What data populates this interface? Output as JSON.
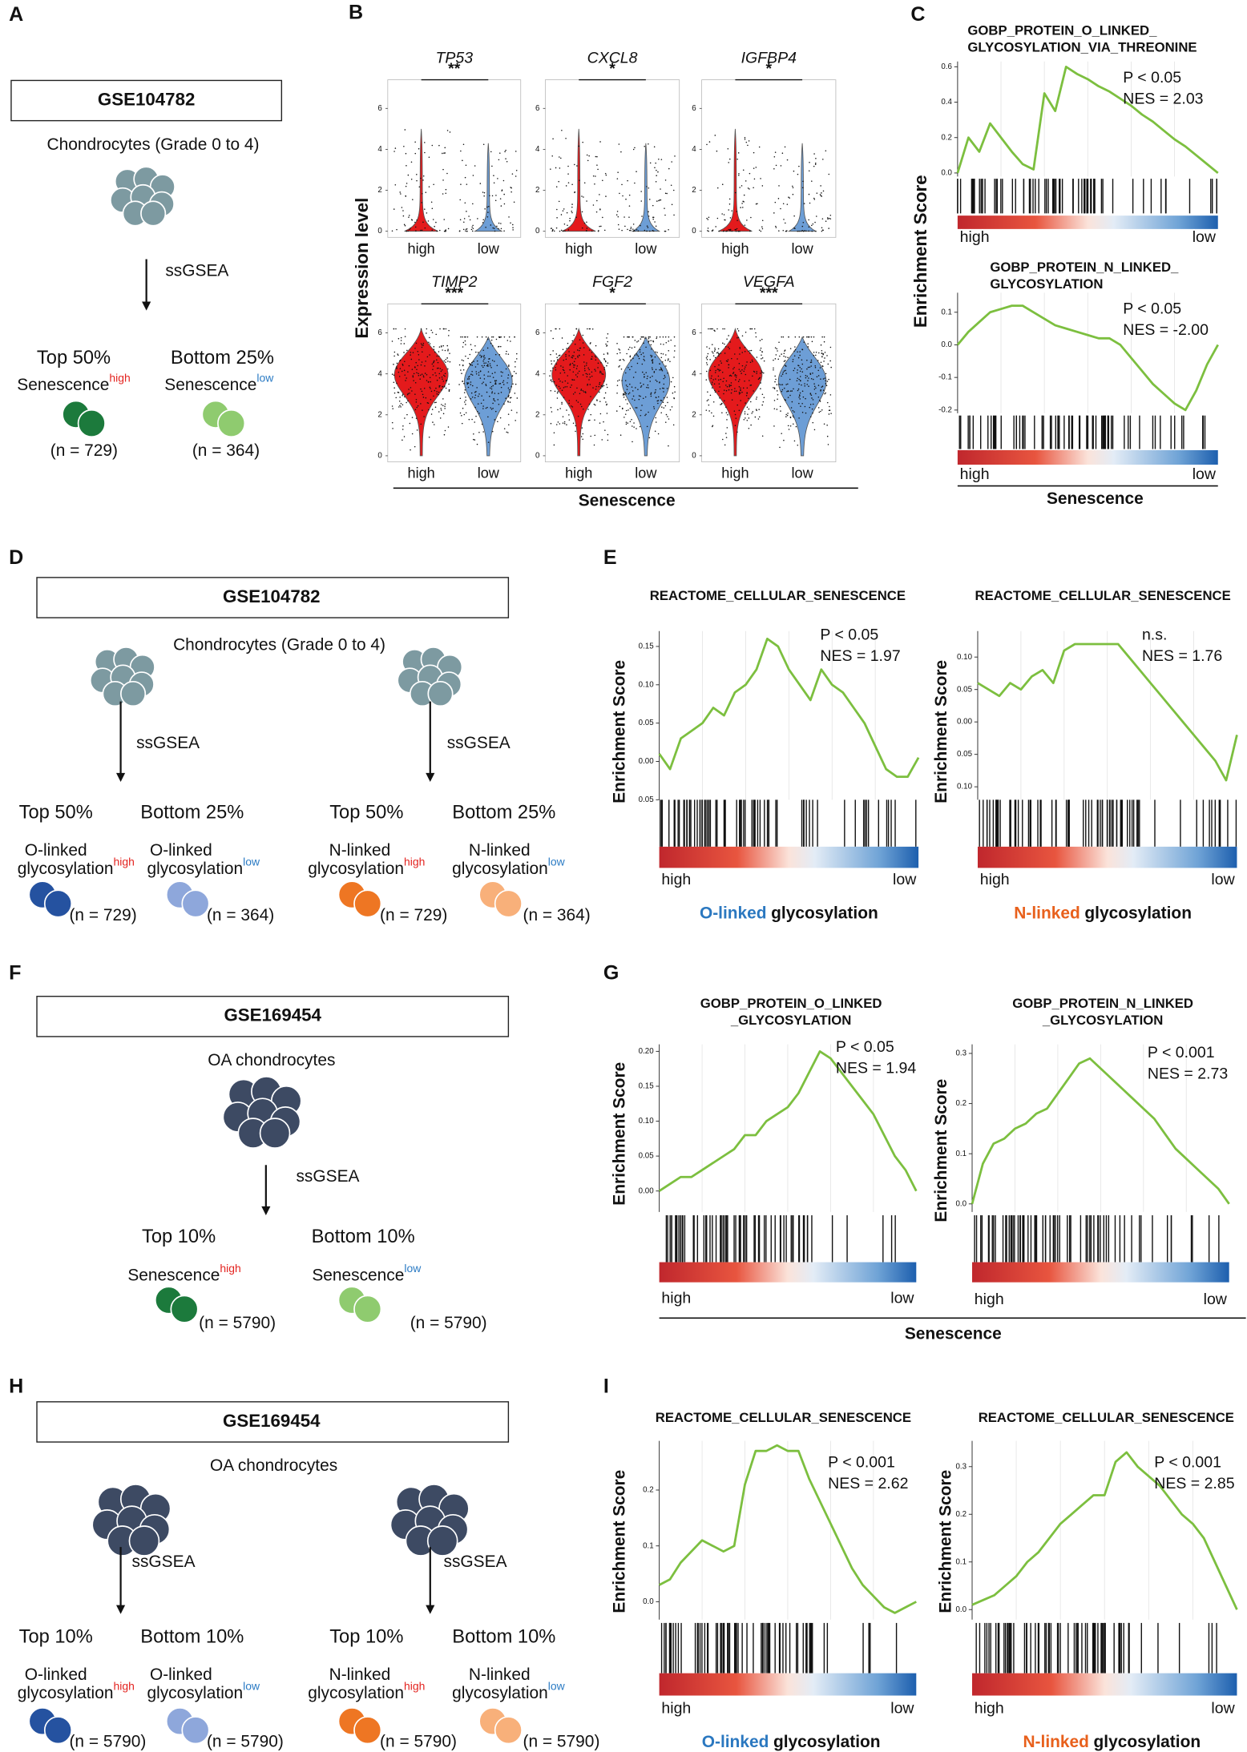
{
  "A": {
    "letter": "A",
    "dataset": "GSE104782",
    "cells": "Chondrocytes (Grade 0 to 4)",
    "method": "ssGSEA",
    "groups": [
      {
        "percent": "Top 50%",
        "name": "Senescence",
        "level": "high",
        "n": "(n = 729)",
        "color": "#1c7a3c"
      },
      {
        "percent": "Bottom 25%",
        "name": "Senescence",
        "level": "low",
        "n": "(n = 364)",
        "color": "#8fcb6f"
      }
    ]
  },
  "B": {
    "letter": "B",
    "y_label": "Expression level",
    "x_label": "Senescence",
    "categories": [
      "high",
      "low"
    ],
    "colors": [
      "#e41a1c",
      "#6d9ed6"
    ],
    "ylim": [
      -0.3,
      7.4
    ],
    "yticks": [
      0,
      2,
      4,
      6
    ],
    "genes": [
      {
        "name": "TP53",
        "significance": "**"
      },
      {
        "name": "CXCL8",
        "significance": "*"
      },
      {
        "name": "IGFBP4",
        "significance": "*"
      },
      {
        "name": "TIMP2",
        "significance": "***"
      },
      {
        "name": "FGF2",
        "significance": "*"
      },
      {
        "name": "VEGFA",
        "significance": "***"
      }
    ]
  },
  "C": {
    "letter": "C",
    "y_label": "Enrichment Score",
    "x_label": "Senescence",
    "plots": [
      {
        "title": [
          "GOBP_PROTEIN_O_LINKED_",
          "GLYCOSYLATION_VIA_THREONINE"
        ],
        "p": "P < 0.05",
        "nes": "NES = 2.03",
        "high_label": "high",
        "low_label": "low",
        "ylim": [
          -0.02,
          0.63
        ],
        "yticks": [
          {
            "value": 0,
            "label": "0.0"
          },
          0.2,
          0.4,
          0.6
        ],
        "values": [
          0,
          0.2,
          0.12,
          0.28,
          0.2,
          0.12,
          0.05,
          0.02,
          0.45,
          0.35,
          0.6,
          0.56,
          0.53,
          0.49,
          0.46,
          0.42,
          0.38,
          0.33,
          0.29,
          0.24,
          0.19,
          0.15,
          0.1,
          0.05,
          0
        ]
      },
      {
        "title": [
          "GOBP_PROTEIN_N_LINKED_",
          "GLYCOSYLATION"
        ],
        "p": "P < 0.05",
        "nes": "NES = -2.00",
        "high_label": "high",
        "low_label": "low",
        "ylim": [
          -0.21,
          0.16
        ],
        "yticks": [
          0.1,
          {
            "value": 0,
            "label": "0.0"
          },
          -0.1,
          -0.2
        ],
        "values": [
          0,
          0.04,
          0.07,
          0.1,
          0.11,
          0.12,
          0.12,
          0.1,
          0.08,
          0.06,
          0.05,
          0.04,
          0.03,
          0.02,
          0.02,
          0,
          -0.04,
          -0.08,
          -0.12,
          -0.15,
          -0.18,
          -0.2,
          -0.14,
          -0.06,
          0
        ]
      }
    ]
  },
  "D": {
    "letter": "D",
    "dataset": "GSE104782",
    "cells": "Chondrocytes (Grade 0 to 4)",
    "method": "ssGSEA",
    "groups": [
      {
        "percent": "Top 50%",
        "name": [
          "O-linked",
          "glycosylation"
        ],
        "level": "high",
        "n": "(n = 729)",
        "color": "#2552a0"
      },
      {
        "percent": "Bottom 25%",
        "name": [
          "O-linked",
          "glycosylation"
        ],
        "level": "low",
        "n": "(n = 364)",
        "color": "#8ea7db"
      },
      {
        "percent": "Top 50%",
        "name": [
          "N-linked",
          "glycosylation"
        ],
        "level": "high",
        "n": "(n = 729)",
        "color": "#ee7623"
      },
      {
        "percent": "Bottom 25%",
        "name": [
          "N-linked",
          "glycosylation"
        ],
        "level": "low",
        "n": "(n = 364)",
        "color": "#f8b07a"
      }
    ]
  },
  "E": {
    "letter": "E",
    "plots": [
      {
        "title": [
          "REACTOME_CELLULAR_SENESCENCE"
        ],
        "p": "P < 0.05",
        "nes": "NES = 1.97",
        "high_label": "high",
        "low_label": "low",
        "y_label": "Enrichment Score",
        "x_label": "O-linked",
        "x_label_rest": "glycosylation",
        "x_label_color": "#2b78c0",
        "ylim": [
          -0.05,
          0.17
        ],
        "yticks": [
          0.15,
          {
            "value": 0.1,
            "label": "0.10"
          },
          0.05,
          {
            "value": 0,
            "label": "0.00"
          },
          {
            "value": -0.05,
            "label": "0.05"
          }
        ],
        "values": [
          0.01,
          -0.01,
          0.03,
          0.04,
          0.05,
          0.07,
          0.06,
          0.09,
          0.1,
          0.12,
          0.16,
          0.15,
          0.12,
          0.1,
          0.08,
          0.12,
          0.1,
          0.09,
          0.07,
          0.05,
          0.02,
          -0.01,
          -0.02,
          -0.02,
          0.005
        ]
      },
      {
        "title": [
          "REACTOME_CELLULAR_SENESCENCE"
        ],
        "p": "n.s.",
        "nes": "NES = 1.76",
        "high_label": "high",
        "low_label": "low",
        "y_label": "Enrichment Score",
        "x_label": "N-linked",
        "x_label_rest": "glycosylation",
        "x_label_color": "#e8601c",
        "ylim": [
          -0.12,
          0.14
        ],
        "yticks": [
          {
            "value": 0.1,
            "label": "0.10"
          },
          0.05,
          {
            "value": 0,
            "label": "0.00"
          },
          {
            "value": -0.05,
            "label": "0.05"
          },
          {
            "value": -0.1,
            "label": "0.10"
          }
        ],
        "values": [
          0.06,
          0.05,
          0.04,
          0.06,
          0.05,
          0.07,
          0.08,
          0.06,
          0.11,
          0.12,
          0.12,
          0.12,
          0.12,
          0.12,
          0.1,
          0.08,
          0.06,
          0.04,
          0.02,
          0,
          -0.02,
          -0.04,
          -0.06,
          -0.09,
          -0.02
        ]
      }
    ]
  },
  "F": {
    "letter": "F",
    "dataset": "GSE169454",
    "cells": "OA chondrocytes",
    "method": "ssGSEA",
    "groups": [
      {
        "percent": "Top 10%",
        "name": "Senescence",
        "level": "high",
        "n": "(n = 5790)",
        "color": "#1c7a3c"
      },
      {
        "percent": "Bottom 10%",
        "name": "Senescence",
        "level": "low",
        "n": "(n = 5790)",
        "color": "#8fcb6f"
      }
    ]
  },
  "G": {
    "letter": "G",
    "x_label": "Senescence",
    "plots": [
      {
        "title": [
          "GOBP_PROTEIN_O_LINKED",
          "_GLYCOSYLATION"
        ],
        "p": "P < 0.05",
        "nes": "NES = 1.94",
        "high_label": "high",
        "low_label": "low",
        "y_label": "Enrichment Score",
        "ylim": [
          -0.03,
          0.21
        ],
        "yticks": [
          {
            "value": 0.2,
            "label": "0.20"
          },
          0.15,
          {
            "value": 0.1,
            "label": "0.10"
          },
          0.05,
          {
            "value": 0,
            "label": "0.00"
          }
        ],
        "values": [
          0,
          0.01,
          0.02,
          0.02,
          0.03,
          0.04,
          0.05,
          0.06,
          0.08,
          0.08,
          0.1,
          0.11,
          0.12,
          0.14,
          0.17,
          0.2,
          0.19,
          0.17,
          0.15,
          0.13,
          0.11,
          0.08,
          0.05,
          0.03,
          0
        ]
      },
      {
        "title": [
          "GOBP_PROTEIN_N_LINKED",
          "_GLYCOSYLATION"
        ],
        "p": "P < 0.001",
        "nes": "NES = 2.73",
        "high_label": "high",
        "low_label": "low",
        "y_label": "Enrichment Score",
        "ylim": [
          -0.016,
          0.318
        ],
        "yticks": [
          0.3,
          0.2,
          0.1,
          {
            "value": 0,
            "label": "0.0"
          }
        ],
        "values": [
          0,
          0.08,
          0.12,
          0.13,
          0.15,
          0.16,
          0.18,
          0.19,
          0.22,
          0.25,
          0.28,
          0.29,
          0.27,
          0.25,
          0.23,
          0.21,
          0.19,
          0.17,
          0.14,
          0.11,
          0.09,
          0.07,
          0.05,
          0.03,
          0
        ]
      }
    ]
  },
  "H": {
    "letter": "H",
    "dataset": "GSE169454",
    "cells": "OA chondrocytes",
    "method": "ssGSEA",
    "groups": [
      {
        "percent": "Top 10%",
        "name": [
          "O-linked",
          "glycosylation"
        ],
        "level": "high",
        "n": "(n = 5790)",
        "color": "#2552a0"
      },
      {
        "percent": "Bottom 10%",
        "name": [
          "O-linked",
          "glycosylation"
        ],
        "level": "low",
        "n": "(n = 5790)",
        "color": "#8ea7db"
      },
      {
        "percent": "Top 10%",
        "name": [
          "N-linked",
          "glycosylation"
        ],
        "level": "high",
        "n": "(n = 5790)",
        "color": "#ee7623"
      },
      {
        "percent": "Bottom 10%",
        "name": [
          "N-linked",
          "glycosylation"
        ],
        "level": "low",
        "n": "(n = 5790)",
        "color": "#f8b07a"
      }
    ]
  },
  "I": {
    "letter": "I",
    "plots": [
      {
        "title": [
          "REACTOME_CELLULAR_SENESCENCE"
        ],
        "p": "P < 0.001",
        "nes": "NES = 2.62",
        "high_label": "high",
        "low_label": "low",
        "y_label": "Enrichment Score",
        "x_label": "O-linked",
        "x_label_rest": "glycosylation",
        "x_label_color": "#2b78c0",
        "ylim": [
          -0.032,
          0.288
        ],
        "yticks": [
          {
            "value": 0,
            "label": "0.0"
          },
          0.1,
          0.2
        ],
        "values": [
          0.03,
          0.04,
          0.07,
          0.09,
          0.11,
          0.1,
          0.09,
          0.1,
          0.21,
          0.27,
          0.27,
          0.28,
          0.27,
          0.27,
          0.22,
          0.18,
          0.14,
          0.1,
          0.06,
          0.03,
          0.01,
          -0.01,
          -0.02,
          -0.01,
          0
        ]
      },
      {
        "title": [
          "REACTOME_CELLULAR_SENESCENCE"
        ],
        "p": "P < 0.001",
        "nes": "NES = 2.85",
        "high_label": "high",
        "low_label": "low",
        "y_label": "Enrichment Score",
        "x_label": "N-linked",
        "x_label_rest": "glycosylation",
        "x_label_color": "#e8601c",
        "ylim": [
          -0.021,
          0.354
        ],
        "yticks": [
          {
            "value": 0,
            "label": "0.0"
          },
          0.1,
          0.2,
          0.3
        ],
        "values": [
          0.01,
          0.02,
          0.03,
          0.05,
          0.07,
          0.1,
          0.12,
          0.15,
          0.18,
          0.2,
          0.22,
          0.24,
          0.24,
          0.31,
          0.33,
          0.3,
          0.28,
          0.26,
          0.23,
          0.2,
          0.18,
          0.15,
          0.1,
          0.05,
          0
        ]
      }
    ]
  }
}
